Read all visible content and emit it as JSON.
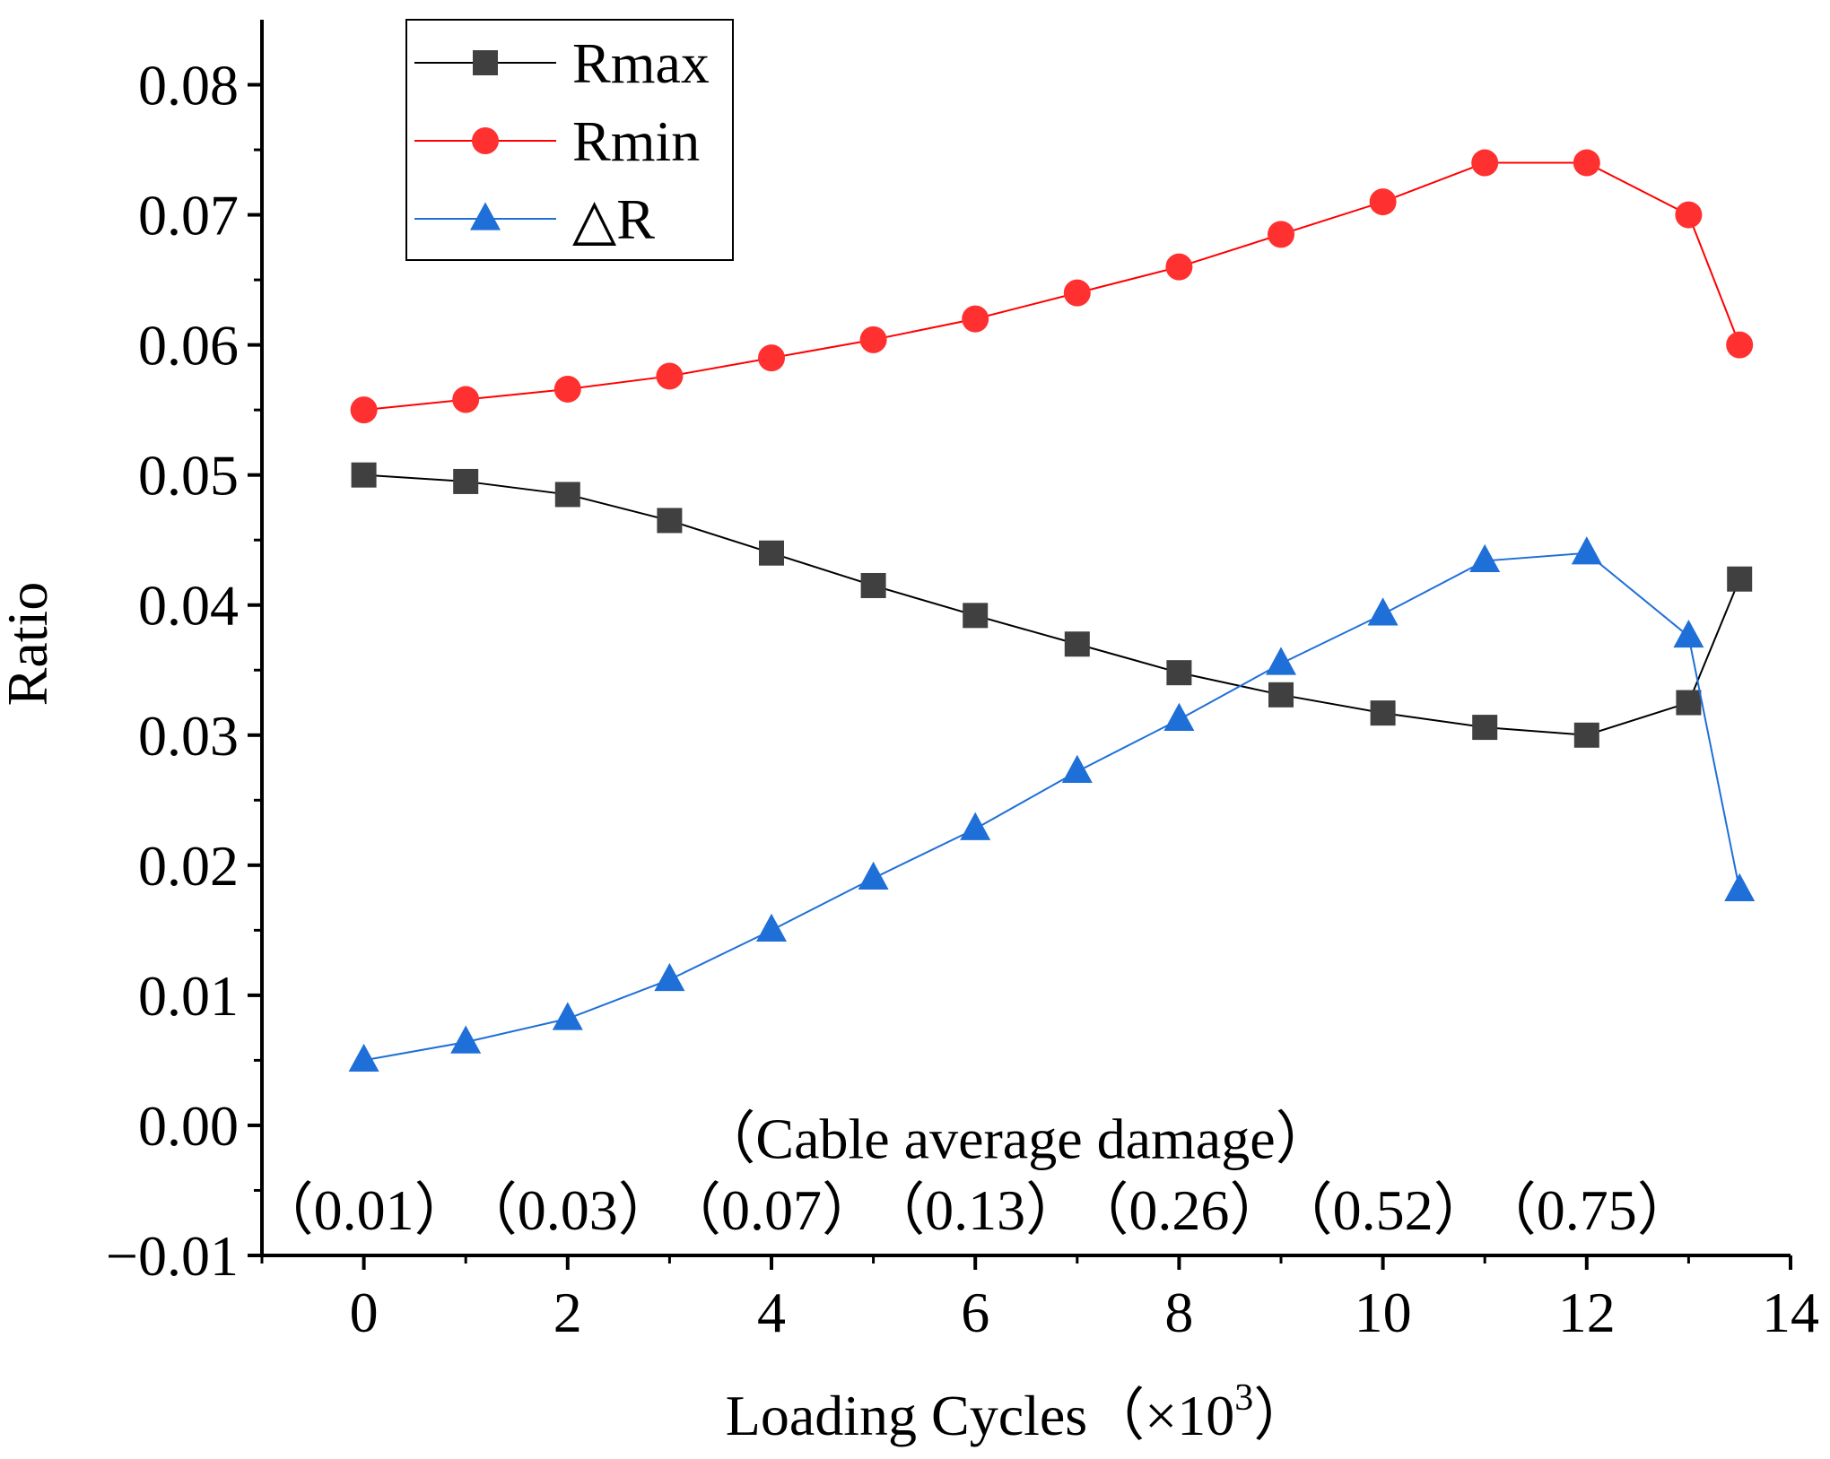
{
  "chart_data": {
    "type": "line",
    "title": "",
    "xlabel": "Loading Cycles（×10",
    "xlabel_superscript": "3",
    "xlabel_suffix": "）",
    "ylabel": "Ratio",
    "xlim": [
      -1,
      14
    ],
    "ylim": [
      -0.01,
      0.085
    ],
    "x_ticks": [
      0,
      2,
      4,
      6,
      8,
      10,
      12,
      14
    ],
    "x_tick_labels": [
      "0",
      "2",
      "4",
      "6",
      "8",
      "10",
      "12",
      "14"
    ],
    "y_ticks": [
      -0.01,
      0.0,
      0.01,
      0.02,
      0.03,
      0.04,
      0.05,
      0.06,
      0.07,
      0.08
    ],
    "y_tick_labels": [
      "−0.01",
      "0.00",
      "0.01",
      "0.02",
      "0.03",
      "0.04",
      "0.05",
      "0.06",
      "0.07",
      "0.08"
    ],
    "x": [
      0,
      1,
      2,
      3,
      4,
      5,
      6,
      7,
      8,
      9,
      10,
      11,
      12,
      13,
      13.5
    ],
    "series": [
      {
        "name": "Rmax",
        "color": "#000000",
        "marker": "square",
        "marker_color": "#404040",
        "values": [
          0.05,
          0.0495,
          0.0485,
          0.0465,
          0.044,
          0.0415,
          0.0392,
          0.037,
          0.0348,
          0.0331,
          0.0317,
          0.0306,
          0.03,
          0.0325,
          0.042
        ]
      },
      {
        "name": "Rmin",
        "color": "#ff0000",
        "marker": "circle",
        "marker_color": "#ff3030",
        "values": [
          0.055,
          0.0558,
          0.0566,
          0.0576,
          0.059,
          0.0604,
          0.062,
          0.064,
          0.066,
          0.0685,
          0.071,
          0.074,
          0.074,
          0.07,
          0.06
        ]
      },
      {
        "name": "△R",
        "color": "#1f6fd8",
        "marker": "triangle",
        "marker_color": "#1f6fd8",
        "values": [
          0.005,
          0.0064,
          0.0082,
          0.0112,
          0.015,
          0.019,
          0.0228,
          0.0272,
          0.0312,
          0.0355,
          0.0393,
          0.0434,
          0.044,
          0.0376,
          0.0181
        ]
      }
    ],
    "legend_position": "top-left",
    "annotation_title": "（Cable average damage）",
    "damage_labels": [
      {
        "x": 0,
        "text": "（0.01）"
      },
      {
        "x": 2,
        "text": "（0.03）"
      },
      {
        "x": 4,
        "text": "（0.07）"
      },
      {
        "x": 6,
        "text": "（0.13）"
      },
      {
        "x": 8,
        "text": "（0.26）"
      },
      {
        "x": 10,
        "text": "（0.52）"
      },
      {
        "x": 12,
        "text": "（0.75）"
      }
    ],
    "annotation_title_x": 6.5,
    "annotation_title_y": -0.001,
    "damage_labels_y": -0.0065,
    "grid": false
  }
}
